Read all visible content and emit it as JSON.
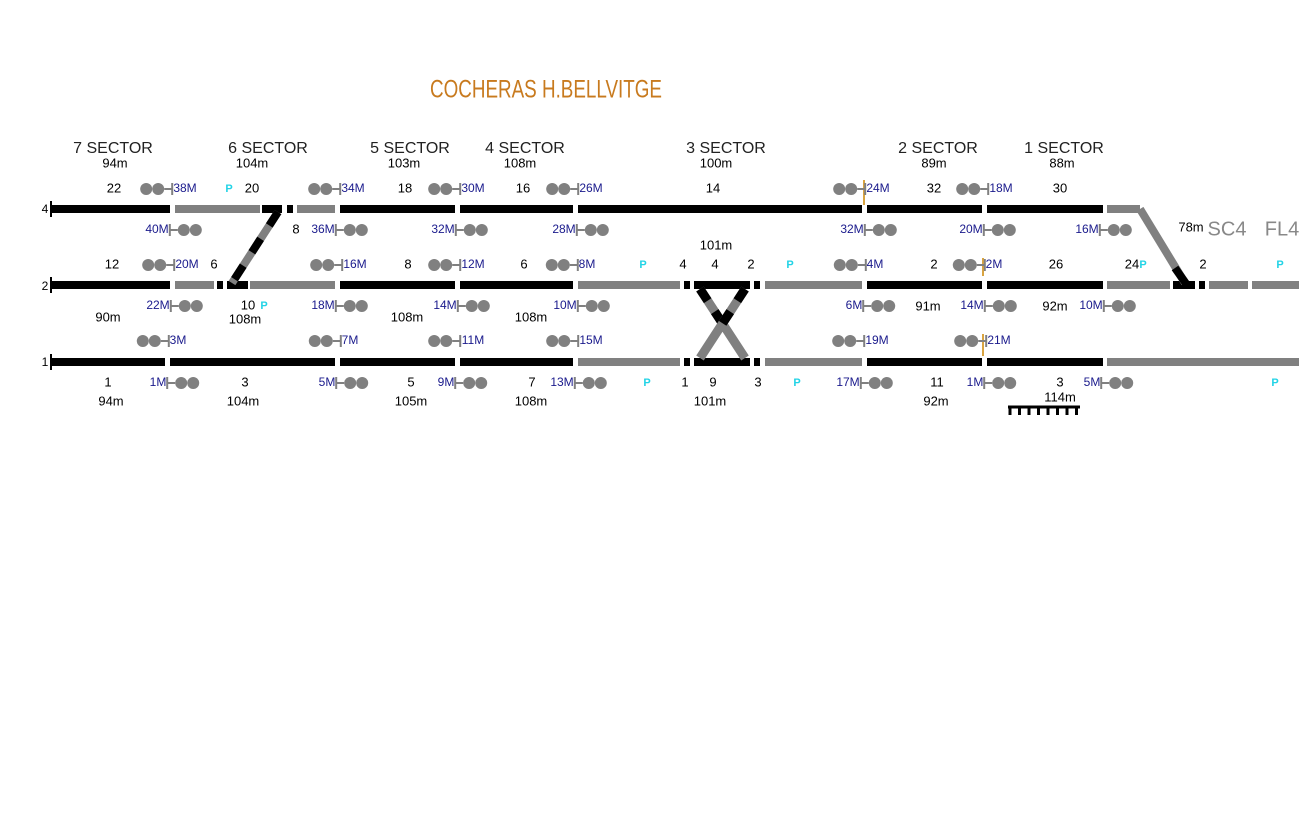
{
  "title": "COCHERAS H.BELLVITGE",
  "sectors": [
    {
      "name": "7 SECTOR",
      "length": "94m"
    },
    {
      "name": "6 SECTOR",
      "length": "104m"
    },
    {
      "name": "5 SECTOR",
      "length": "103m"
    },
    {
      "name": "4 SECTOR",
      "length": "108m"
    },
    {
      "name": "3 SECTOR",
      "length": "100m"
    },
    {
      "name": "2 SECTOR",
      "length": "89m"
    },
    {
      "name": "1 SECTOR",
      "length": "88m"
    }
  ],
  "track_numbers": [
    "4",
    "2",
    "1"
  ],
  "labels": [
    "22",
    "38M",
    "P",
    "20",
    "34M",
    "18",
    "30M",
    "16",
    "26M",
    "14",
    "24M",
    "32",
    "18M",
    "30",
    "40M",
    "8",
    "36M",
    "32M",
    "28M",
    "32M",
    "20M",
    "16M",
    "78m",
    "SC4",
    "FL4",
    "101m",
    "12",
    "20M",
    "6",
    "16M",
    "8",
    "12M",
    "6",
    "8M",
    "P",
    "4",
    "4",
    "2",
    "P",
    "4M",
    "2",
    "2M",
    "26",
    "24",
    "P",
    "2",
    "P",
    "22M",
    "10",
    "P",
    "18M",
    "14M",
    "10M",
    "6M",
    "91m",
    "14M",
    "92m",
    "10M",
    "90m",
    "108m",
    "108m",
    "108m",
    "3M",
    "7M",
    "11M",
    "15M",
    "19M",
    "21M",
    "1",
    "1M",
    "3",
    "5M",
    "5",
    "9M",
    "7",
    "13M",
    "P",
    "1",
    "9",
    "3",
    "P",
    "17M",
    "11",
    "1M",
    "3",
    "5M",
    "P",
    "94m",
    "104m",
    "105m",
    "108m",
    "101m",
    "92m",
    "114m"
  ]
}
